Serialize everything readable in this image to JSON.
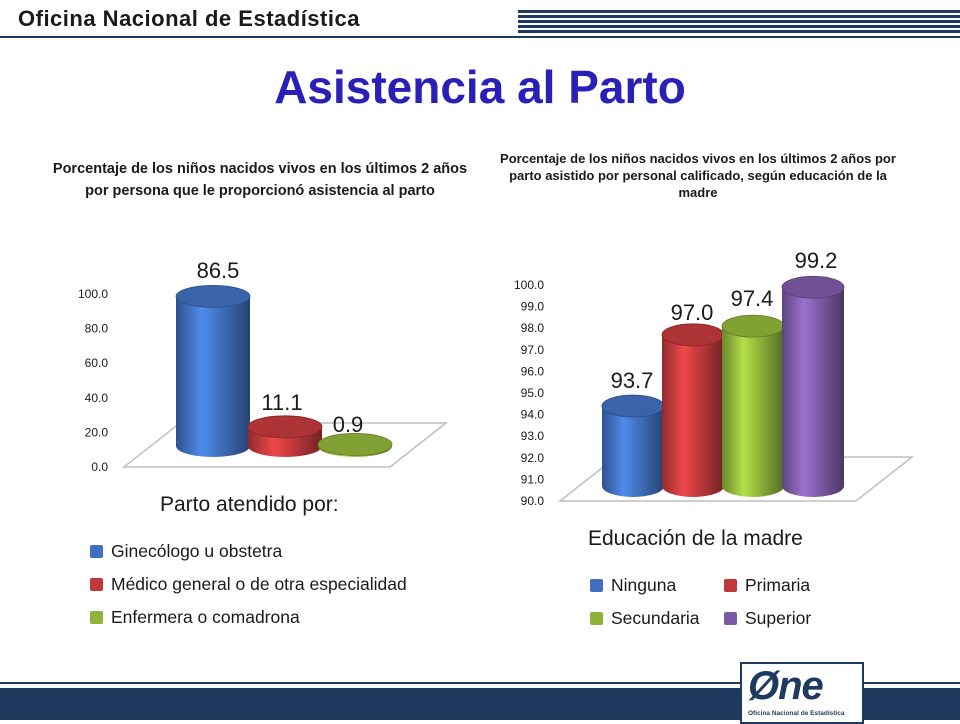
{
  "header": {
    "org_name": "Oficina Nacional de Estadística",
    "title": "Asistencia al Parto"
  },
  "chart_data": [
    {
      "type": "bar",
      "title": "Porcentaje de los niños nacidos vivos en los últimos 2 años por persona que le proporcionó asistencia al parto",
      "legend_title": "Parto atendido por:",
      "categories": [
        "Ginecólogo u obstetra",
        "Médico general o de otra especialidad",
        "Enfermera o comadrona"
      ],
      "values": [
        86.5,
        11.1,
        0.9
      ],
      "value_labels": [
        "86.5",
        "11.1",
        "0.9"
      ],
      "colors": [
        "#3f6fbd",
        "#c0393b",
        "#8fb33a"
      ],
      "ylim": [
        0,
        100
      ],
      "yticks": [
        "0.0",
        "20.0",
        "40.0",
        "60.0",
        "80.0",
        "100.0"
      ],
      "legend_position": "bottom"
    },
    {
      "type": "bar",
      "title": "Porcentaje de los niños nacidos vivos en los últimos 2 años por parto asistido por personal calificado, según educación de la madre",
      "legend_title": "Educación de la madre",
      "categories": [
        "Ninguna",
        "Primaria",
        "Secundaria",
        "Superior"
      ],
      "values": [
        93.7,
        97.0,
        97.4,
        99.2
      ],
      "value_labels": [
        "93.7",
        "97.0",
        "97.4",
        "99.2"
      ],
      "colors": [
        "#3f6fbd",
        "#c0393b",
        "#8fb33a",
        "#7d5aa6"
      ],
      "ylim": [
        90,
        100
      ],
      "yticks": [
        "90.0",
        "91.0",
        "92.0",
        "93.0",
        "94.0",
        "95.0",
        "96.0",
        "97.0",
        "98.0",
        "99.0",
        "100.0"
      ],
      "legend_position": "bottom"
    }
  ],
  "footer": {
    "logo_text": "Øne",
    "logo_sub": "Oficina Nacional de Estadística"
  }
}
